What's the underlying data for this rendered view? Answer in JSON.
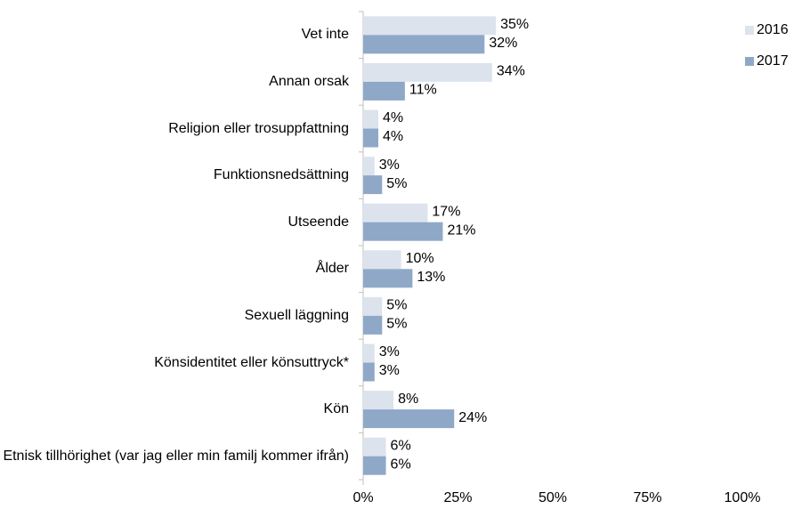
{
  "chart_data": {
    "type": "barh",
    "categories": [
      "Vet inte",
      "Annan orsak",
      "Religion eller trosuppfattning",
      "Funktionsnedsättning",
      "Utseende",
      "Ålder",
      "Sexuell läggning",
      "Könsidentitet eller könsuttryck*",
      "Kön",
      "Etnisk tillhörighet (var jag eller min familj kommer ifrån)"
    ],
    "series": [
      {
        "name": "2016",
        "color": "#dce3ed",
        "values": [
          35,
          34,
          4,
          3,
          17,
          10,
          5,
          3,
          8,
          6
        ],
        "value_labels": [
          "35%",
          "34%",
          "4%",
          "3%",
          "17%",
          "10%",
          "5%",
          "3%",
          "8%",
          "6%"
        ]
      },
      {
        "name": "2017",
        "color": "#8fa8c8",
        "values": [
          32,
          11,
          4,
          5,
          21,
          13,
          5,
          3,
          24,
          6
        ],
        "value_labels": [
          "32%",
          "11%",
          "4%",
          "5%",
          "21%",
          "13%",
          "5%",
          "3%",
          "24%",
          "6%"
        ]
      }
    ],
    "xlim": [
      0,
      100
    ],
    "xticks": [
      {
        "value": 0,
        "label": "0%"
      },
      {
        "value": 25,
        "label": "25%"
      },
      {
        "value": 50,
        "label": "50%"
      },
      {
        "value": 75,
        "label": "75%"
      },
      {
        "value": 100,
        "label": "100%"
      }
    ],
    "grid": false,
    "legend": "top-right"
  }
}
